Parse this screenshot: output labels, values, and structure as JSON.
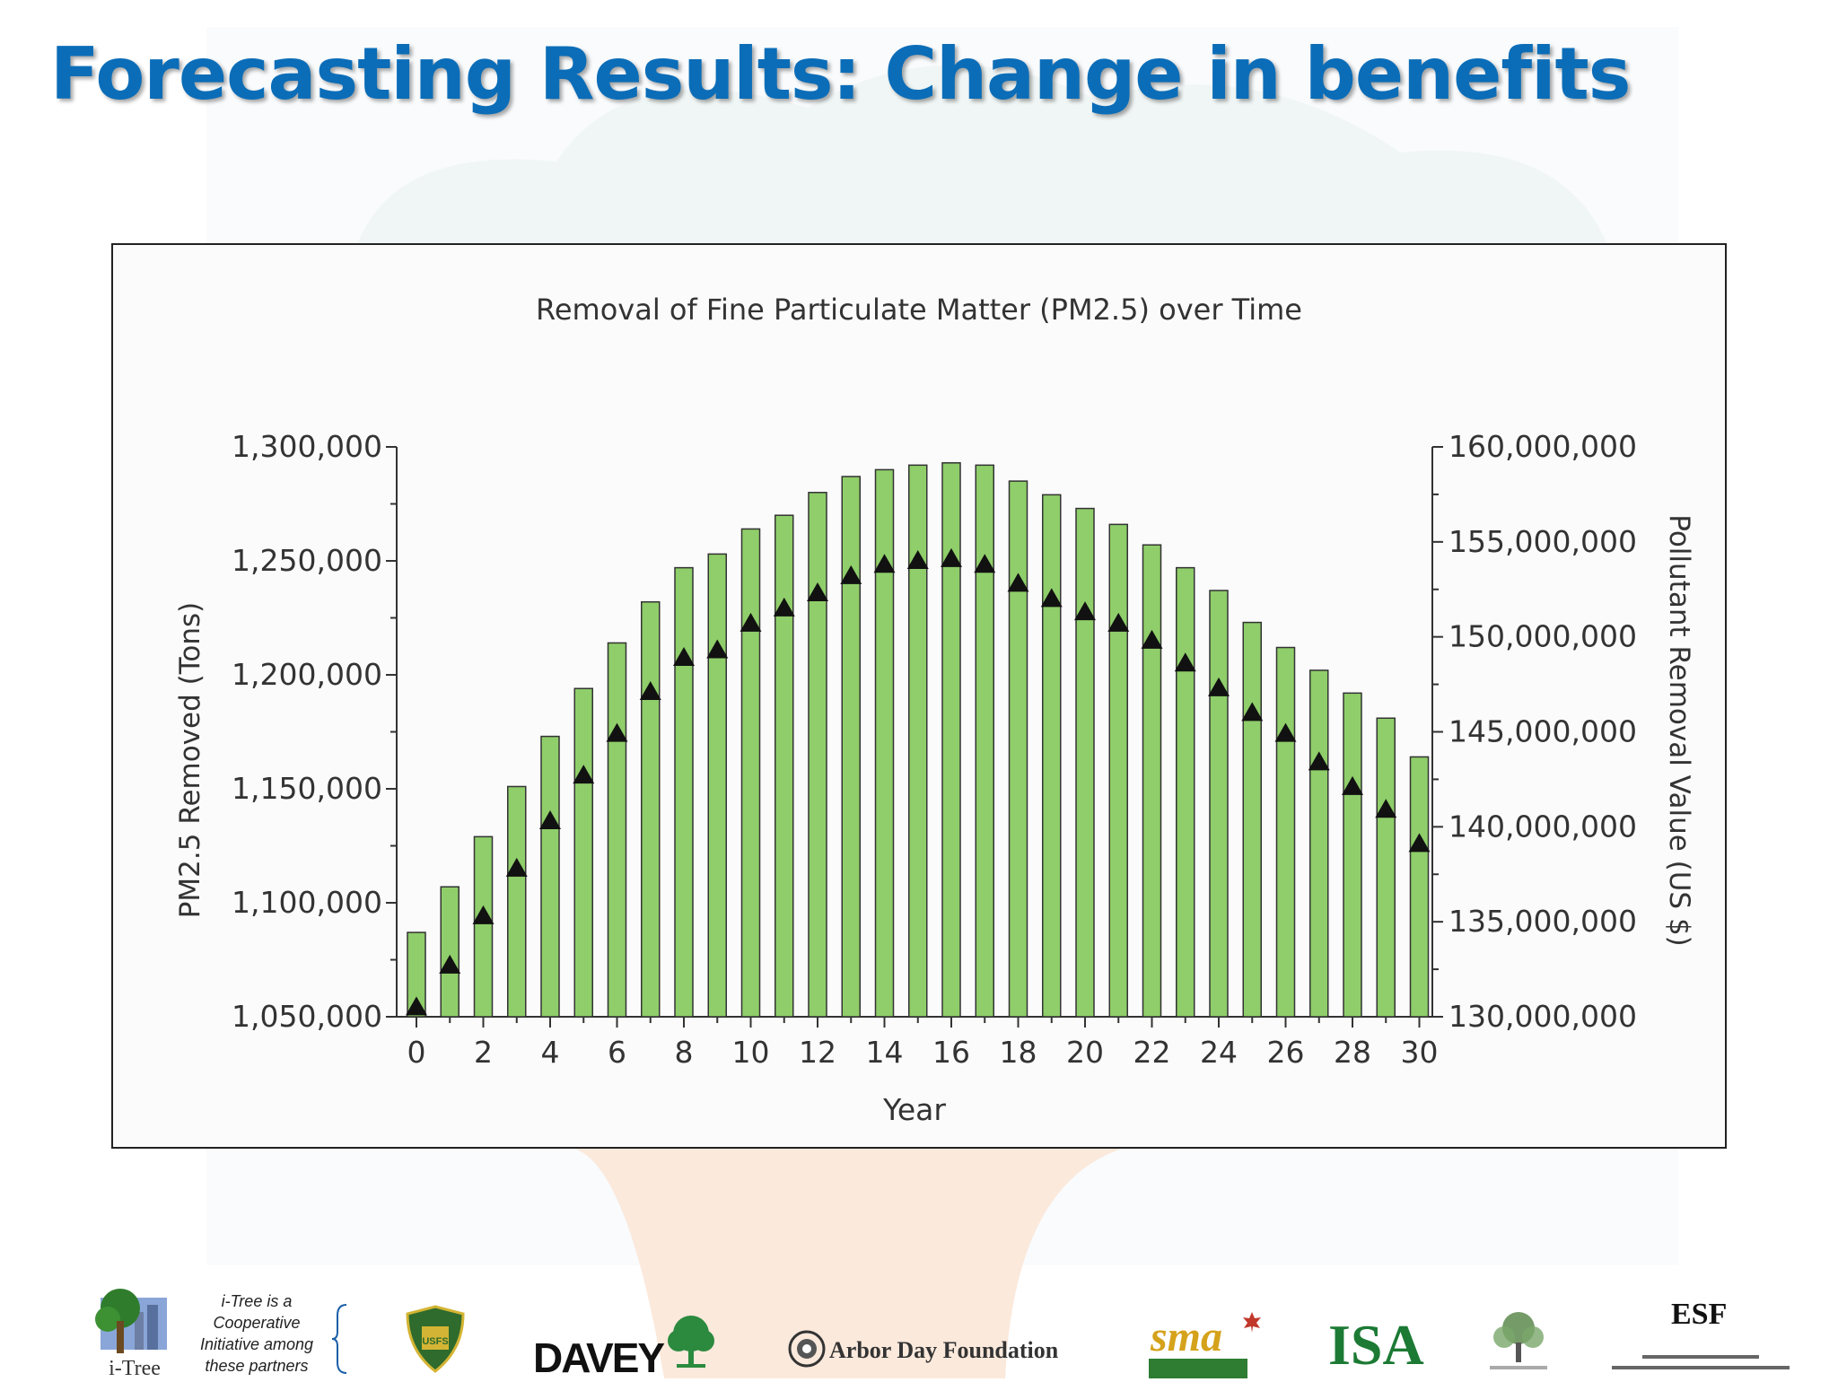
{
  "slide": {
    "title": "Forecasting Results: Change in benefits"
  },
  "chart_data": {
    "type": "bar",
    "title": "Removal of Fine Particulate Matter (PM2.5) over Time",
    "xlabel": "Year",
    "ylabel": "PM2.5 Removed (Tons)",
    "y2label": "Pollutant Removal Value (US $)",
    "ylim": [
      1050000,
      1300000
    ],
    "y2lim": [
      130000000,
      160000000
    ],
    "yticks": [
      "1,050,000",
      "1,100,000",
      "1,150,000",
      "1,200,000",
      "1,250,000",
      "1,300,000"
    ],
    "y2ticks": [
      "130,000,000",
      "135,000,000",
      "140,000,000",
      "145,000,000",
      "150,000,000",
      "155,000,000",
      "160,000,000"
    ],
    "xticks": [
      "0",
      "2",
      "4",
      "6",
      "8",
      "10",
      "12",
      "14",
      "16",
      "18",
      "20",
      "22",
      "24",
      "26",
      "28",
      "30"
    ],
    "x": [
      0,
      1,
      2,
      3,
      4,
      5,
      6,
      7,
      8,
      9,
      10,
      11,
      12,
      13,
      14,
      15,
      16,
      17,
      18,
      19,
      20,
      21,
      22,
      23,
      24,
      25,
      26,
      27,
      28,
      29,
      30
    ],
    "series": [
      {
        "type": "bar",
        "axis": "left",
        "color": "#8fce6a",
        "values": [
          1087000,
          1107000,
          1129000,
          1151000,
          1173000,
          1194000,
          1214000,
          1232000,
          1247000,
          1253000,
          1264000,
          1270000,
          1280000,
          1287000,
          1290000,
          1292000,
          1293000,
          1292000,
          1285000,
          1279000,
          1273000,
          1266000,
          1257000,
          1247000,
          1237000,
          1223000,
          1212000,
          1202000,
          1192000,
          1181000,
          1164000
        ]
      },
      {
        "type": "scatter",
        "axis": "right",
        "marker": "triangle",
        "color": "#111111",
        "values": [
          130500000,
          132700000,
          135300000,
          137800000,
          140300000,
          142700000,
          144900000,
          147100000,
          148900000,
          149300000,
          150700000,
          151500000,
          152300000,
          153200000,
          153800000,
          154000000,
          154100000,
          153800000,
          152800000,
          152000000,
          151300000,
          150700000,
          149800000,
          148600000,
          147300000,
          146000000,
          144900000,
          143400000,
          142100000,
          140900000,
          139100000
        ]
      }
    ],
    "grid": false,
    "legend": "none"
  },
  "footer": {
    "itree_logo_text": "i-Tree",
    "coop_lines": [
      "i-Tree is a",
      "Cooperative",
      "Initiative among",
      "these partners"
    ],
    "partner_usfs": "USFS",
    "partner_davey": "DAVEY",
    "partner_arbor": "Arbor Day Foundation",
    "partner_sma": "sma",
    "partner_isa": "ISA",
    "partner_esf": "ESF"
  }
}
